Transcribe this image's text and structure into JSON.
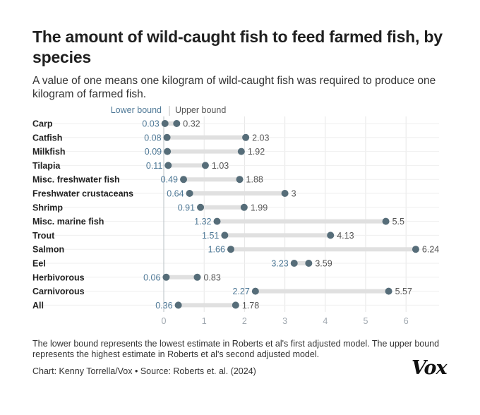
{
  "title": "The amount of wild-caught fish to feed farmed fish, by species",
  "subtitle": "A value of one means one kilogram of wild-caught fish was required to produce one kilogram of farmed fish.",
  "legend": {
    "lower": "Lower bound",
    "upper": "Upper bound"
  },
  "note": "The lower bound represents the lowest estimate in Roberts et al's first adjusted model. The upper bound represents the highest estimate in Roberts et al's second adjusted model.",
  "credit": "Chart: Kenny Torrella/Vox • Source: Roberts et. al. (2024)",
  "logo": "Vox",
  "colors": {
    "dot": "#566d79",
    "lower_label": "#4e7896",
    "upper_label": "#555555",
    "range_bar": "#e0e0e0",
    "grid": "#e6e6e6",
    "tick": "#a0a8b0"
  },
  "chart_data": {
    "type": "dumbbell",
    "xlim": [
      0,
      6.6
    ],
    "xticks": [
      0,
      1,
      2,
      3,
      4,
      5,
      6
    ],
    "legend_placement": "top",
    "categories": [
      "Carp",
      "Catfish",
      "Milkfish",
      "Tilapia",
      "Misc. freshwater fish",
      "Freshwater crustaceans",
      "Shrimp",
      "Misc. marine fish",
      "Trout",
      "Salmon",
      "Eel",
      "Herbivorous",
      "Carnivorous",
      "All"
    ],
    "series": [
      {
        "name": "Lower bound",
        "values": [
          0.03,
          0.08,
          0.09,
          0.11,
          0.49,
          0.64,
          0.91,
          1.32,
          1.51,
          1.66,
          3.23,
          0.06,
          2.27,
          0.36
        ]
      },
      {
        "name": "Upper bound",
        "values": [
          0.32,
          2.03,
          1.92,
          1.03,
          1.88,
          3,
          1.99,
          5.5,
          4.13,
          6.24,
          3.59,
          0.83,
          5.57,
          1.78
        ]
      }
    ]
  }
}
